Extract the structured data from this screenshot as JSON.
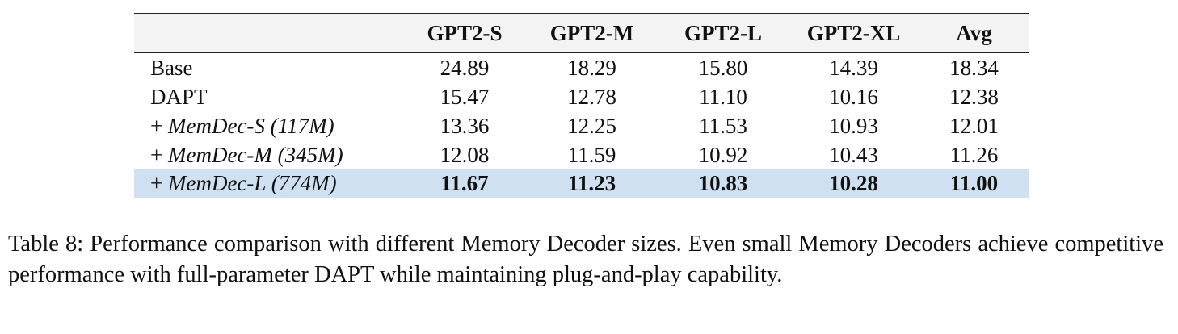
{
  "table": {
    "headers": [
      "",
      "GPT2-S",
      "GPT2-M",
      "GPT2-L",
      "GPT2-XL",
      "Avg"
    ],
    "rows": [
      {
        "prefix": "",
        "method": "Base",
        "values": [
          "24.89",
          "18.29",
          "15.80",
          "14.39",
          "18.34"
        ]
      },
      {
        "prefix": "",
        "method": "DAPT",
        "values": [
          "15.47",
          "12.78",
          "11.10",
          "10.16",
          "12.38"
        ]
      },
      {
        "prefix": "+ ",
        "method": "MemDec-S (117M)",
        "values": [
          "13.36",
          "12.25",
          "11.53",
          "10.93",
          "12.01"
        ]
      },
      {
        "prefix": "+ ",
        "method": "MemDec-M (345M)",
        "values": [
          "12.08",
          "11.59",
          "10.92",
          "10.43",
          "11.26"
        ]
      },
      {
        "prefix": "+ ",
        "method": "MemDec-L (774M)",
        "values": [
          "11.67",
          "11.23",
          "10.83",
          "10.28",
          "11.00"
        ]
      }
    ],
    "highlight_color": "#cfe0f1"
  },
  "caption": "Table 8: Performance comparison with different Memory Decoder sizes. Even small Memory Decoders achieve competitive performance with full-parameter DAPT while maintaining plug-and-play capability."
}
